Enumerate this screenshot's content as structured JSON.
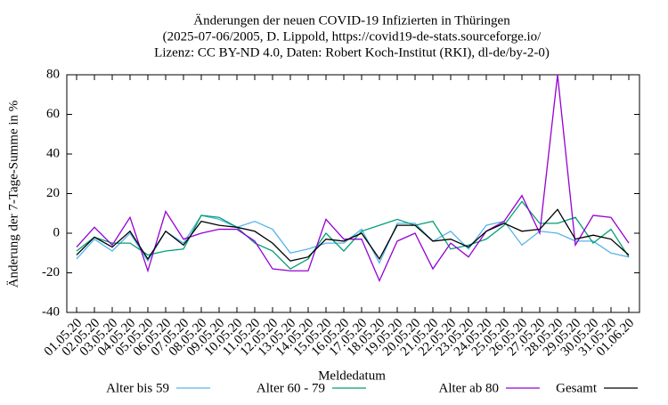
{
  "chart_data": {
    "type": "line",
    "title": [
      "Änderungen der neuen COVID-19 Infizierten in Thüringen",
      "(2025-07-06/2005, D. Lippold, https://covid19-de-stats.sourceforge.io/",
      "Lizenz: CC BY-ND 4.0, Daten: Robert Koch-Institut (RKI), dl-de/by-2-0)"
    ],
    "x_label": "Meldedatum",
    "y_label": "Änderung der 7-Tage-Summe in %",
    "categories": [
      "01.05.20",
      "02.05.20",
      "03.05.20",
      "04.05.20",
      "05.05.20",
      "06.05.20",
      "07.05.20",
      "08.05.20",
      "09.05.20",
      "10.05.20",
      "11.05.20",
      "12.05.20",
      "13.05.20",
      "14.05.20",
      "15.05.20",
      "16.05.20",
      "17.05.20",
      "18.05.20",
      "19.05.20",
      "20.05.20",
      "21.05.20",
      "22.05.20",
      "23.05.20",
      "24.05.20",
      "25.05.20",
      "26.05.20",
      "27.05.20",
      "28.05.20",
      "29.05.20",
      "30.05.20",
      "31.05.20",
      "01.06.20"
    ],
    "ylim": [
      -40,
      80
    ],
    "yticks": [
      -40,
      -20,
      0,
      20,
      40,
      60,
      80
    ],
    "grid": false,
    "legend": "bottom",
    "series": [
      {
        "name": "Alter bis 59",
        "color": "#56b4e9",
        "values": [
          -13,
          -3,
          -9,
          0,
          -14,
          1,
          -5,
          9,
          7,
          3,
          6,
          2,
          -10,
          -8,
          -5,
          -5,
          2,
          -15,
          5,
          5,
          -4,
          1,
          -8,
          4,
          6,
          -6,
          1,
          0,
          -4,
          -4,
          -10,
          -12
        ]
      },
      {
        "name": "Alter 60 - 79",
        "color": "#009e73",
        "values": [
          -9,
          -2,
          -5,
          -5,
          -11,
          -9,
          -8,
          9,
          8,
          3,
          -5,
          -9,
          -18,
          -13,
          0,
          -9,
          1,
          4,
          7,
          4,
          6,
          -8,
          -6,
          -3,
          4,
          16,
          5,
          5,
          8,
          -5,
          2,
          -12
        ]
      },
      {
        "name": "Alter ab 80",
        "color": "#9400d3",
        "values": [
          -7,
          3,
          -6,
          8,
          -19,
          11,
          -3,
          0,
          2,
          2,
          -4,
          -18,
          -19,
          -19,
          7,
          -3,
          -3,
          -24,
          -4,
          0,
          -18,
          -5,
          -12,
          1,
          6,
          19,
          0,
          80,
          -6,
          9,
          8,
          -5
        ]
      },
      {
        "name": "Gesamt",
        "color": "#000000",
        "values": [
          -11,
          -2,
          -7,
          1,
          -13,
          1,
          -6,
          6,
          4,
          3,
          1,
          -5,
          -14,
          -12,
          -3,
          -4,
          0,
          -13,
          4,
          4,
          -4,
          -3,
          -7,
          1,
          5,
          1,
          2,
          12,
          -3,
          -1,
          -3,
          -11
        ]
      }
    ]
  }
}
